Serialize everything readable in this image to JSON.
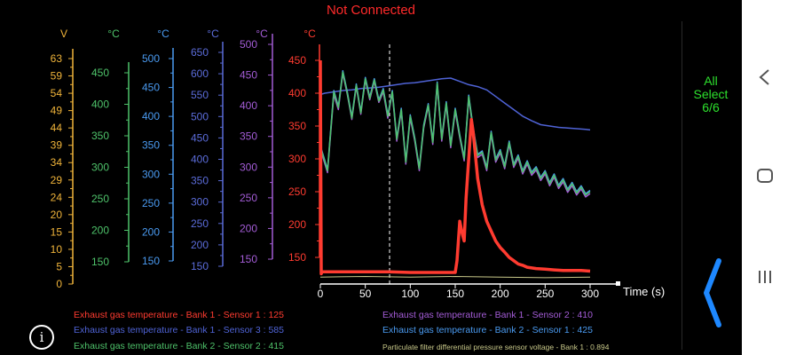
{
  "status": "Not Connected",
  "select": {
    "line1": "All",
    "line2": "Select",
    "line3": "6/6"
  },
  "colors": {
    "red": "#ff3b30",
    "blue": "#4f63d6",
    "green": "#4ec26a",
    "purple": "#a35cd6",
    "orange": "#f0b43a",
    "lightblue": "#4a9af0",
    "yellow": "#c9c98a"
  },
  "axes": [
    {
      "unit": "V",
      "color": "#f0b43a",
      "ticks": [
        "63",
        "59",
        "54",
        "49",
        "44",
        "39",
        "34",
        "29",
        "24",
        "20",
        "15",
        "10",
        "5",
        "0"
      ]
    },
    {
      "unit": "°C",
      "color": "#4ec26a",
      "ticks": [
        "450",
        "400",
        "350",
        "300",
        "250",
        "200",
        "150"
      ]
    },
    {
      "unit": "°C",
      "color": "#4a9af0",
      "ticks": [
        "500",
        "450",
        "400",
        "350",
        "300",
        "250",
        "200",
        "150"
      ]
    },
    {
      "unit": "°C",
      "color": "#5b6cd9",
      "ticks": [
        "650",
        "600",
        "550",
        "500",
        "450",
        "400",
        "350",
        "300",
        "250",
        "200",
        "150"
      ]
    },
    {
      "unit": "°C",
      "color": "#a35cd6",
      "ticks": [
        "500",
        "450",
        "400",
        "350",
        "300",
        "250",
        "200",
        "150"
      ]
    },
    {
      "unit": "°C",
      "color": "#ff3b30",
      "ticks": [
        "450",
        "400",
        "350",
        "300",
        "250",
        "200",
        "150"
      ]
    }
  ],
  "chart_data": {
    "type": "line",
    "xlabel": "Time (s)",
    "xlim": [
      0,
      300
    ],
    "x_ticks": [
      "0",
      "50",
      "100",
      "150",
      "200",
      "250",
      "300"
    ],
    "ylim": [
      110,
      470
    ],
    "cursor_x": 77,
    "series": [
      {
        "name": "Exhaust gas temperature - Bank 1 - Sensor 1 : 125",
        "color": "#ff3b30",
        "x": [
          0,
          1,
          2,
          76,
          100,
          150,
          152,
          155,
          158,
          160,
          162,
          165,
          168,
          170,
          175,
          180,
          185,
          190,
          195,
          200,
          205,
          210,
          215,
          220,
          225,
          230,
          240,
          250,
          260,
          270,
          280,
          290,
          300
        ],
        "y": [
          450,
          125,
          128,
          128,
          127,
          127,
          145,
          205,
          185,
          175,
          240,
          300,
          360,
          340,
          270,
          230,
          205,
          190,
          175,
          165,
          158,
          150,
          145,
          140,
          138,
          135,
          133,
          132,
          131,
          130,
          130,
          130,
          129
        ]
      },
      {
        "name": "Exhaust gas temperature - Bank 1 - Sensor 3 : 585",
        "color": "#4f63d6",
        "x": [
          0,
          5,
          15,
          25,
          35,
          45,
          55,
          65,
          75,
          85,
          95,
          105,
          115,
          125,
          135,
          145,
          155,
          165,
          175,
          185,
          195,
          205,
          215,
          225,
          235,
          245,
          255,
          265,
          275,
          285,
          295,
          300
        ],
        "y": [
          398,
          400,
          402,
          404,
          405,
          407,
          408,
          409,
          411,
          413,
          415,
          416,
          418,
          420,
          422,
          423,
          418,
          413,
          410,
          405,
          395,
          385,
          375,
          365,
          358,
          352,
          350,
          348,
          347,
          346,
          345,
          344
        ]
      },
      {
        "name": "Exhaust gas temperature - Bank 2 - Sensor 2 : 415",
        "color": "#4ec26a",
        "x": [
          0,
          8,
          15,
          20,
          25,
          30,
          35,
          40,
          45,
          50,
          55,
          60,
          65,
          70,
          75,
          80,
          85,
          90,
          95,
          100,
          105,
          110,
          115,
          120,
          125,
          130,
          135,
          140,
          145,
          150,
          155,
          160,
          165,
          170,
          175,
          180,
          185,
          190,
          195,
          200,
          205,
          210,
          215,
          220,
          225,
          230,
          235,
          240,
          245,
          250,
          255,
          260,
          265,
          270,
          275,
          280,
          285,
          290,
          295,
          300
        ],
        "y": [
          318,
          282,
          402,
          378,
          432,
          400,
          362,
          412,
          370,
          422,
          392,
          420,
          388,
          405,
          365,
          402,
          330,
          375,
          295,
          365,
          330,
          285,
          350,
          382,
          325,
          415,
          330,
          385,
          320,
          375,
          335,
          300,
          395,
          345,
          305,
          310,
          285,
          340,
          298,
          312,
          288,
          325,
          290,
          304,
          280,
          295,
          278,
          286,
          270,
          280,
          262,
          275,
          258,
          268,
          252,
          262,
          248,
          257,
          245,
          250
        ]
      },
      {
        "name": "Exhaust gas temperature - Bank 1 - Sensor 2 : 410",
        "color": "#a35cd6",
        "x": [
          0,
          8,
          15,
          20,
          25,
          30,
          35,
          40,
          45,
          50,
          55,
          60,
          65,
          70,
          75,
          80,
          85,
          90,
          95,
          100,
          105,
          110,
          115,
          120,
          125,
          130,
          135,
          140,
          145,
          150,
          155,
          160,
          165,
          170,
          175,
          180,
          185,
          190,
          195,
          200,
          205,
          210,
          215,
          220,
          225,
          230,
          235,
          240,
          245,
          250,
          255,
          260,
          265,
          270,
          275,
          280,
          285,
          290,
          295,
          300
        ],
        "y": [
          315,
          279,
          398,
          375,
          430,
          398,
          360,
          410,
          368,
          420,
          390,
          418,
          386,
          402,
          362,
          400,
          327,
          372,
          292,
          362,
          327,
          282,
          347,
          380,
          322,
          412,
          327,
          382,
          317,
          372,
          332,
          297,
          392,
          342,
          302,
          307,
          282,
          337,
          295,
          309,
          285,
          322,
          287,
          301,
          277,
          292,
          275,
          283,
          267,
          277,
          259,
          272,
          255,
          265,
          249,
          259,
          245,
          254,
          242,
          247
        ]
      },
      {
        "name": "Exhaust gas temperature - Bank 2 - Sensor 1 : 425",
        "color": "#4a9af0",
        "x": [
          0,
          8,
          15,
          20,
          25,
          30,
          35,
          40,
          45,
          50,
          55,
          60,
          65,
          70,
          75,
          80,
          85,
          90,
          95,
          100,
          105,
          110,
          115,
          120,
          125,
          130,
          135,
          140,
          145,
          150,
          155,
          160,
          165,
          170,
          175,
          180,
          185,
          190,
          195,
          200,
          205,
          210,
          215,
          220,
          225,
          230,
          235,
          240,
          245,
          250,
          255,
          260,
          265,
          270,
          275,
          280,
          285,
          290,
          295,
          300
        ],
        "y": [
          320,
          284,
          404,
          380,
          434,
          402,
          364,
          414,
          372,
          424,
          394,
          422,
          390,
          407,
          367,
          404,
          332,
          377,
          297,
          367,
          332,
          287,
          352,
          384,
          327,
          417,
          332,
          387,
          322,
          377,
          337,
          302,
          397,
          347,
          307,
          312,
          287,
          342,
          300,
          314,
          290,
          327,
          292,
          306,
          282,
          297,
          280,
          288,
          272,
          282,
          264,
          277,
          260,
          270,
          254,
          264,
          250,
          259,
          247,
          252
        ]
      },
      {
        "name": "Particulate filter differential pressure sensor voltage - Bank 1 : 0.894",
        "color": "#c9c98a",
        "x": [
          0,
          50,
          100,
          150,
          200,
          250,
          300
        ],
        "y": [
          120,
          121,
          120,
          121,
          120,
          119,
          120
        ]
      }
    ]
  },
  "legend": [
    {
      "text": "Exhaust gas temperature  -  Bank 1  -  Sensor 1 : 125",
      "color": "#ff3b30"
    },
    {
      "text": "Exhaust gas temperature  -  Bank 1  -  Sensor 3 : 585",
      "color": "#4f63d6"
    },
    {
      "text": "Exhaust gas temperature  -  Bank 2  -  Sensor 2 : 415",
      "color": "#4ec26a"
    },
    {
      "text": "Exhaust gas temperature  -  Bank 1  -  Sensor 2 : 410",
      "color": "#a35cd6"
    },
    {
      "text": "Exhaust gas temperature  -  Bank 2  -  Sensor 1 : 425",
      "color": "#4a9af0"
    },
    {
      "text": "Particulate filter differential pressure sensor voltage  -  Bank 1 : 0.894",
      "color": "#c9c98a"
    }
  ],
  "info_icon": "info-icon",
  "nav": [
    "back-icon",
    "home-icon",
    "recents-icon"
  ]
}
